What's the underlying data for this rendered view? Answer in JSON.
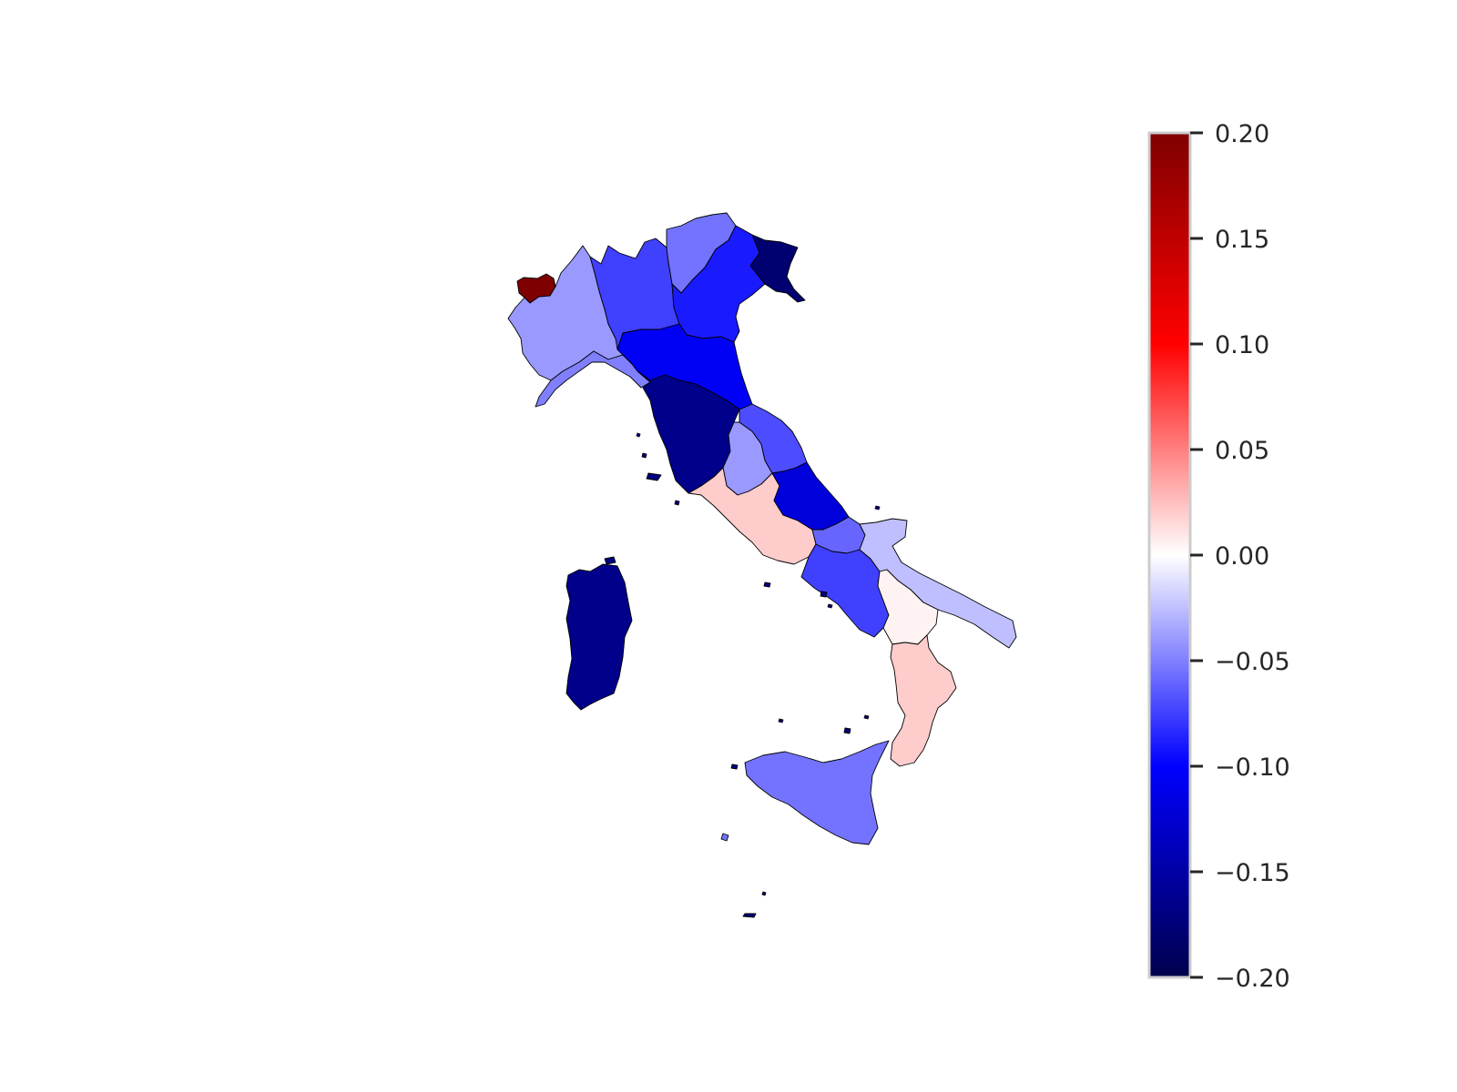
{
  "map": {
    "type": "choropleth",
    "regions": [
      {
        "name": "Valle d'Aosta",
        "value": 0.2
      },
      {
        "name": "Piemonte",
        "value": -0.04
      },
      {
        "name": "Liguria",
        "value": -0.05
      },
      {
        "name": "Lombardia",
        "value": -0.075
      },
      {
        "name": "Trentino-Alto Adige",
        "value": -0.055
      },
      {
        "name": "Veneto",
        "value": -0.09
      },
      {
        "name": "Friuli-Venezia Giulia",
        "value": -0.18
      },
      {
        "name": "Emilia-Romagna",
        "value": -0.105
      },
      {
        "name": "Toscana",
        "value": -0.165
      },
      {
        "name": "Umbria",
        "value": -0.04
      },
      {
        "name": "Marche",
        "value": -0.07
      },
      {
        "name": "Lazio",
        "value": 0.02
      },
      {
        "name": "Abruzzo",
        "value": -0.12
      },
      {
        "name": "Molise",
        "value": -0.06
      },
      {
        "name": "Campania",
        "value": -0.075
      },
      {
        "name": "Puglia",
        "value": -0.025
      },
      {
        "name": "Basilicata",
        "value": 0.005
      },
      {
        "name": "Calabria",
        "value": 0.02
      },
      {
        "name": "Sicilia",
        "value": -0.055
      },
      {
        "name": "Sardegna",
        "value": -0.165
      }
    ]
  },
  "colorbar": {
    "min": -0.2,
    "max": 0.2,
    "colormap": "seismic",
    "colors": [
      "#00004c",
      "#0000ff",
      "#ffffff",
      "#ff0000",
      "#7f0000"
    ],
    "ticks": [
      {
        "value": 0.2,
        "label": "0.20"
      },
      {
        "value": 0.15,
        "label": "0.15"
      },
      {
        "value": 0.1,
        "label": "0.10"
      },
      {
        "value": 0.05,
        "label": "0.05"
      },
      {
        "value": 0.0,
        "label": "0.00"
      },
      {
        "value": -0.05,
        "label": "−0.05"
      },
      {
        "value": -0.1,
        "label": "−0.10"
      },
      {
        "value": -0.15,
        "label": "−0.15"
      },
      {
        "value": -0.2,
        "label": "−0.20"
      }
    ]
  }
}
